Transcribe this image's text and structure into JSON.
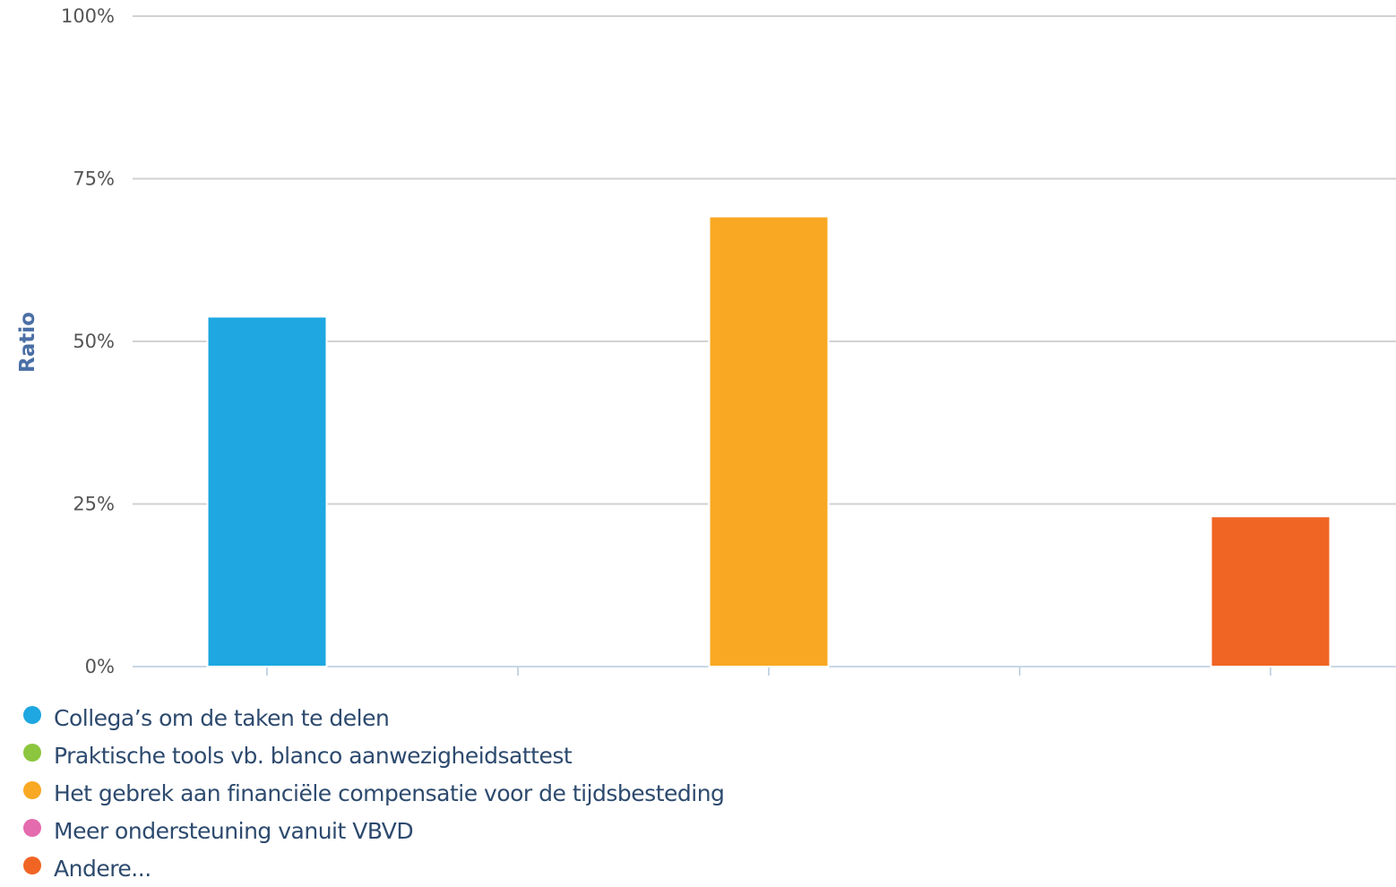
{
  "chart_data": {
    "type": "bar",
    "ylabel": "Ratio",
    "ylim": [
      0,
      100
    ],
    "yticks": [
      "0%",
      "25%",
      "50%",
      "75%",
      "100%"
    ],
    "grid": true,
    "legend_position": "bottom-left",
    "categories": [
      "Collega’s om de taken te delen",
      "Praktische tools vb. blanco aanwezigheidsattest",
      "Het gebrek aan financiële compensatie voor de tijdsbesteding",
      "Meer ondersteuning vanuit VBVD",
      "Andere..."
    ],
    "values": [
      53.8,
      0,
      69.2,
      0,
      23.1
    ],
    "colors": [
      "#1ea7e1",
      "#8cc63f",
      "#f9a823",
      "#e46bad",
      "#f06524"
    ]
  },
  "legend": {
    "items": [
      {
        "label": "Collega’s om de taken te delen",
        "color": "#1ea7e1"
      },
      {
        "label": "Praktische tools vb. blanco aanwezigheidsattest",
        "color": "#8cc63f"
      },
      {
        "label": "Het gebrek aan financiële compensatie voor de tijdsbesteding",
        "color": "#f9a823"
      },
      {
        "label": "Meer ondersteuning vanuit VBVD",
        "color": "#e46bad"
      },
      {
        "label": "Andere...",
        "color": "#f06524"
      }
    ]
  }
}
